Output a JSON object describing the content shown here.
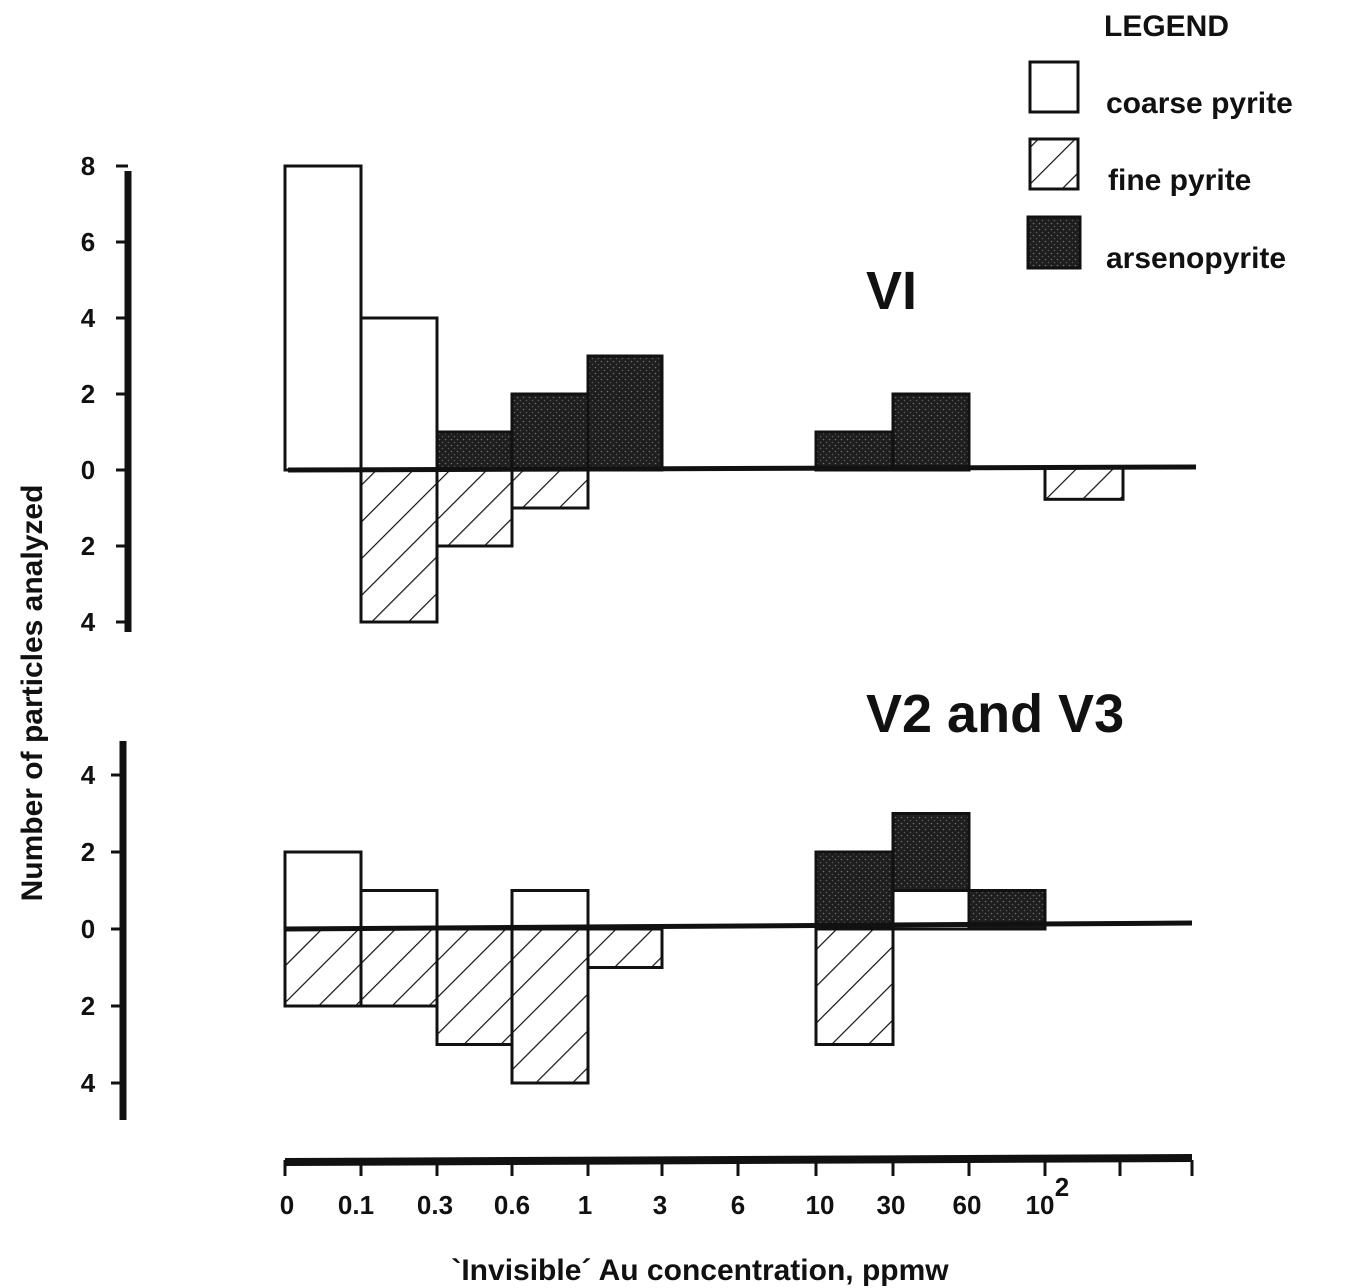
{
  "chart_data": {
    "type": "bar",
    "xlabel": "`Invisible´ Au concentration, ppmw",
    "ylabel": "Number of particles analyzed",
    "x_tick_labels": [
      "0",
      "0.1",
      "0.3",
      "0.6",
      "1",
      "3",
      "6",
      "10",
      "30",
      "60",
      "10"
    ],
    "x_tick_superscript": "2",
    "bins": [
      "0-0.1",
      "0.1-0.3",
      "0.3-0.6",
      "0.6-1",
      "1-3",
      "3-6",
      "6-10",
      "10-30",
      "30-60",
      "60-100"
    ],
    "legend": {
      "title": "LEGEND",
      "placement": "top-right",
      "entries": [
        {
          "name": "coarse pyrite",
          "pattern": "open"
        },
        {
          "name": "fine pyrite",
          "pattern": "hatched"
        },
        {
          "name": "arsenopyrite",
          "pattern": "stippled"
        }
      ]
    },
    "panels": [
      {
        "title": "VI",
        "y_tick_labels_up": [
          "0",
          "2",
          "4",
          "6",
          "8"
        ],
        "y_tick_labels_down": [
          "2",
          "4"
        ],
        "series": [
          {
            "name": "coarse pyrite",
            "direction": "up",
            "values": [
              8,
              4,
              0,
              0,
              0,
              0,
              0,
              0,
              0,
              0
            ]
          },
          {
            "name": "arsenopyrite",
            "direction": "up",
            "values": [
              0,
              0,
              1,
              2,
              3,
              0,
              0,
              1,
              2,
              0
            ]
          },
          {
            "name": "fine pyrite",
            "direction": "down",
            "values": [
              0,
              4,
              2,
              1,
              0,
              0,
              0,
              0,
              0,
              0
            ]
          }
        ],
        "extra_bars": [
          {
            "name": "fine pyrite",
            "direction": "down",
            "range": "100-140",
            "value": 1
          }
        ]
      },
      {
        "title": "V2 and V3",
        "y_tick_labels_up": [
          "0",
          "2",
          "4"
        ],
        "y_tick_labels_down": [
          "2",
          "4"
        ],
        "series": [
          {
            "name": "coarse pyrite",
            "direction": "up",
            "values": [
              2,
              1,
              0,
              1,
              0,
              0,
              0,
              0,
              1,
              0
            ]
          },
          {
            "name": "arsenopyrite",
            "direction": "up",
            "values": [
              0,
              0,
              0,
              0,
              0,
              0,
              0,
              2,
              2,
              1
            ]
          },
          {
            "name": "fine pyrite",
            "direction": "down",
            "values": [
              2,
              2,
              3,
              4,
              1,
              0,
              0,
              3,
              0,
              0
            ]
          }
        ]
      }
    ]
  }
}
